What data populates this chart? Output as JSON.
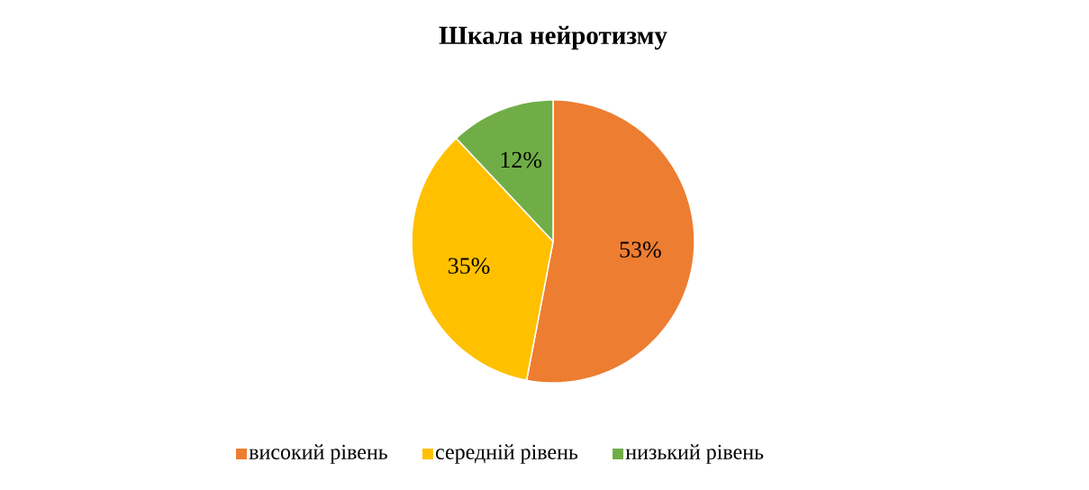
{
  "chart_data": {
    "type": "pie",
    "title": "Шкала нейротизму",
    "categories": [
      "високий рівень",
      "середній рівень",
      "низький рівень"
    ],
    "values": [
      53,
      35,
      12
    ],
    "value_labels": [
      "53%",
      "35%",
      "12%"
    ],
    "colors": [
      "#ed7d31",
      "#ffc000",
      "#70ad47"
    ],
    "legend": "bottom"
  }
}
